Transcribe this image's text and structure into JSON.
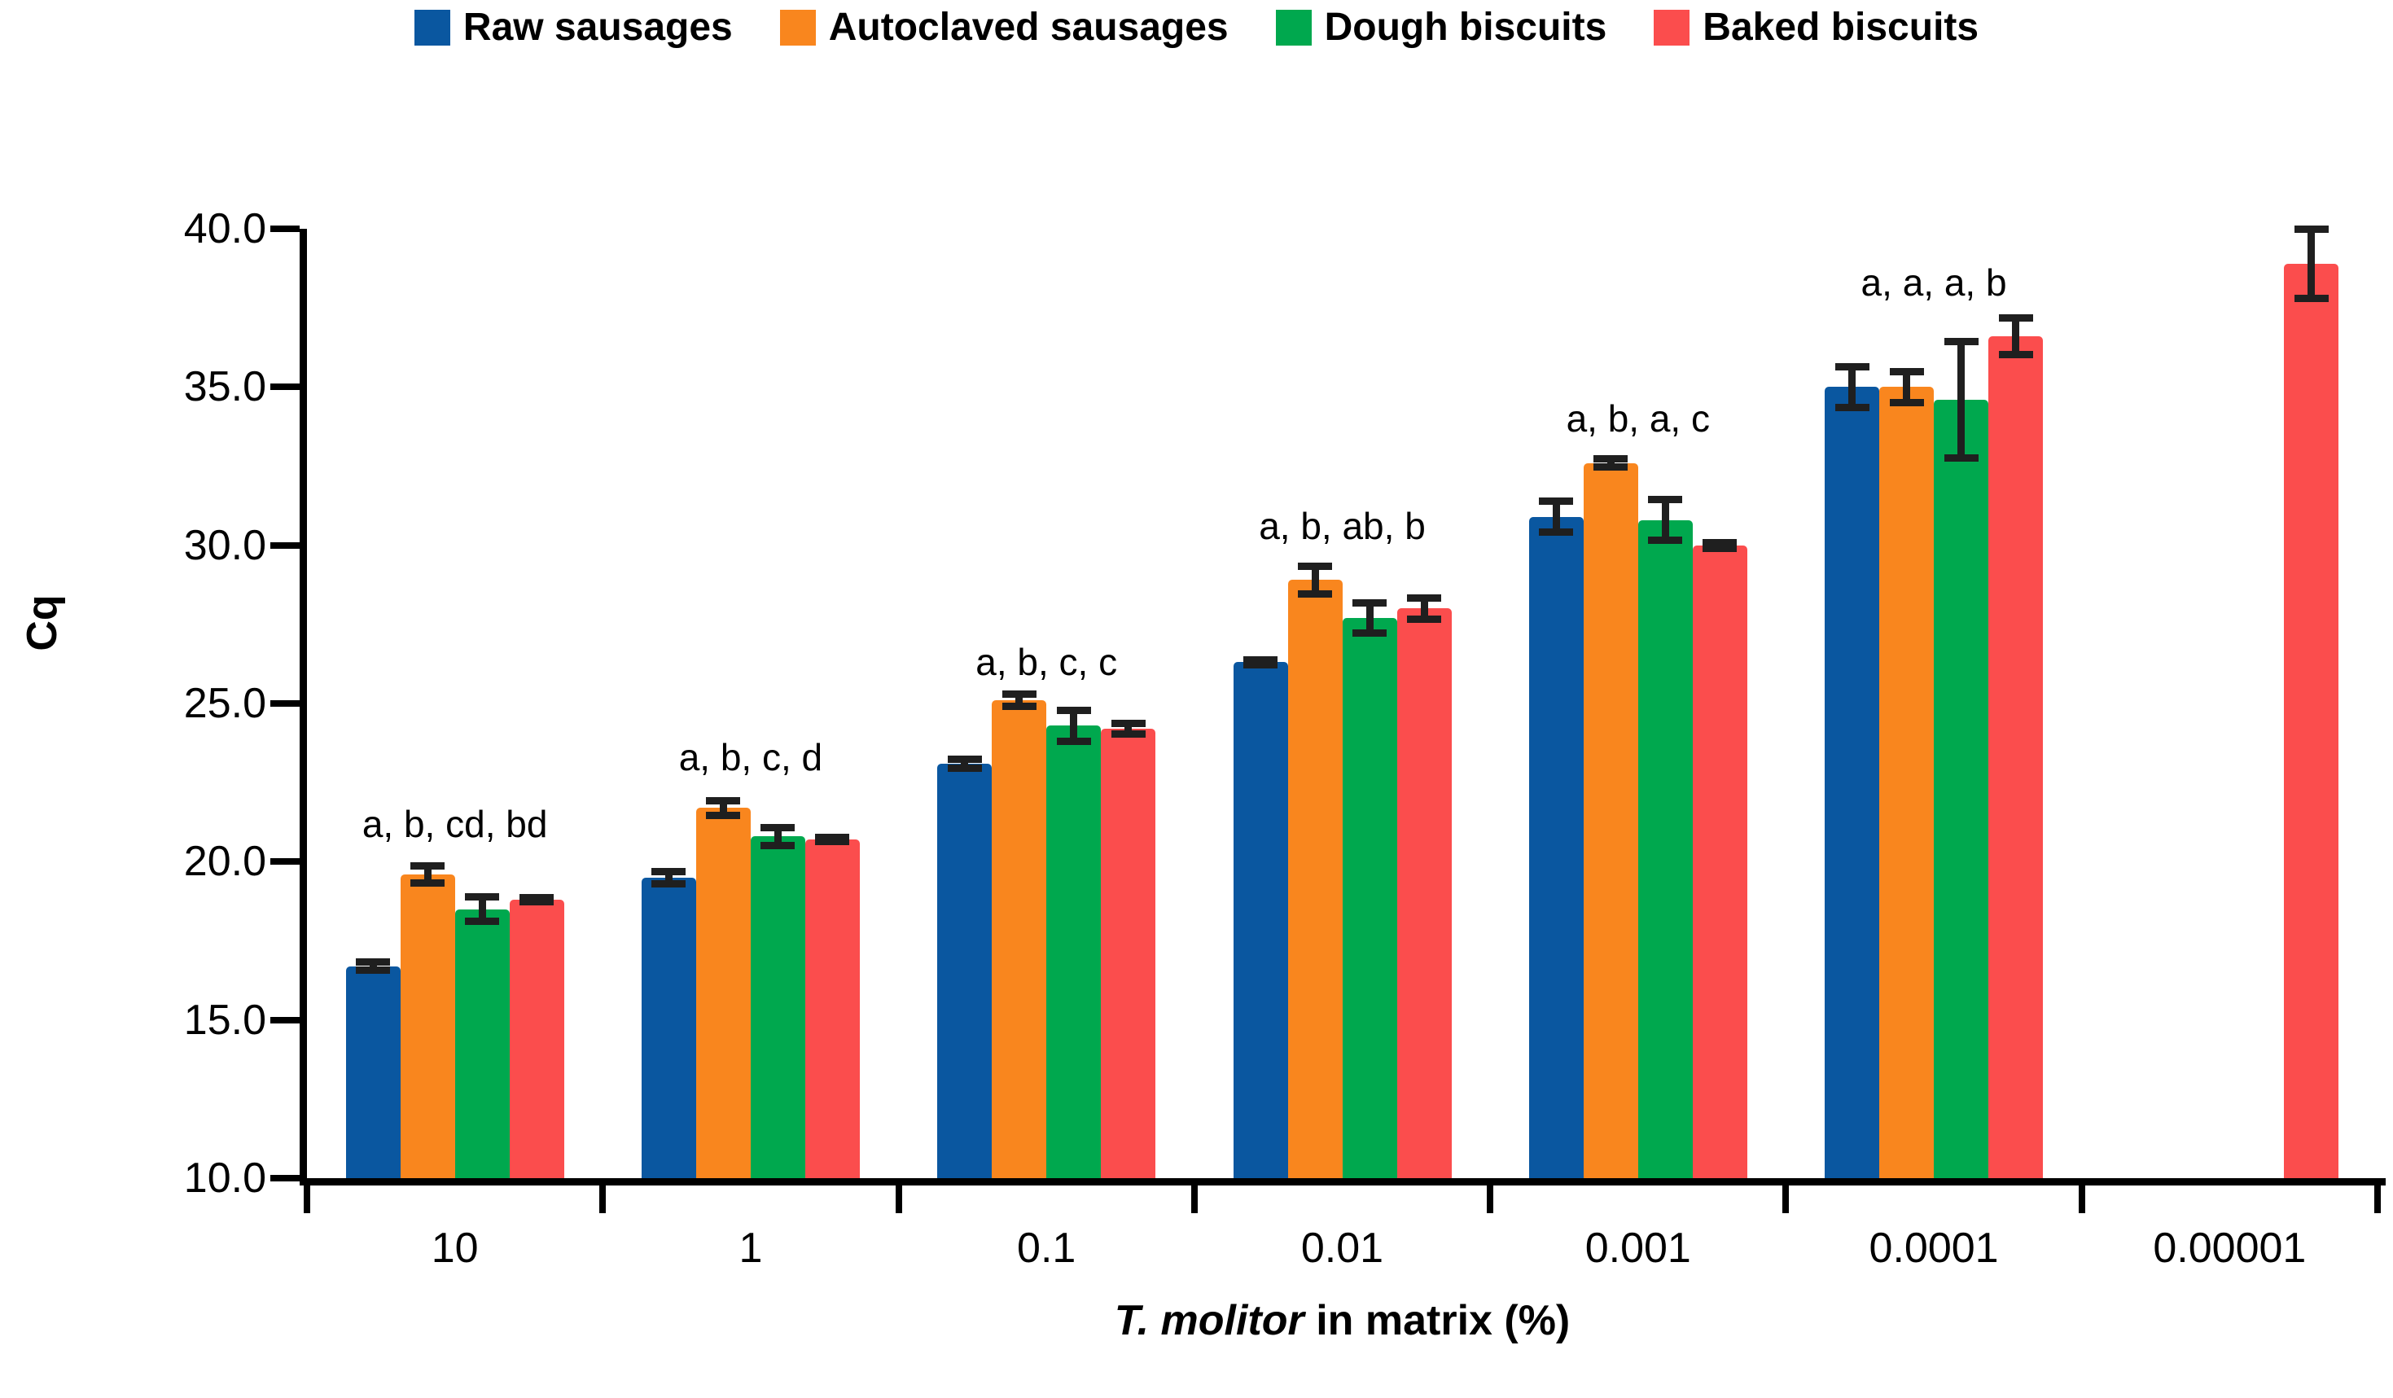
{
  "chart_data": {
    "type": "bar",
    "title": "",
    "legend_position": "top",
    "grid": false,
    "axis_color": "#000000",
    "error_bar_color": "#1f1f1f",
    "x_axis": {
      "title_italic": "T. molitor",
      "title_rest": " in matrix (%)",
      "categories": [
        "10",
        "1",
        "0.1",
        "0.01",
        "0.001",
        "0.0001",
        "0.00001"
      ]
    },
    "y_axis": {
      "title": "Cq",
      "min": 10,
      "max": 40,
      "tick_step": 5,
      "tick_labels": [
        "10.0",
        "15.0",
        "20.0",
        "25.0",
        "30.0",
        "35.0",
        "40.0"
      ]
    },
    "series": [
      {
        "name": "Raw sausages",
        "color": "#0a57a0",
        "values": [
          16.7,
          19.5,
          23.1,
          26.3,
          30.9,
          35.0,
          null
        ],
        "errors": [
          0.15,
          0.2,
          0.15,
          0.1,
          0.5,
          0.65,
          null
        ]
      },
      {
        "name": "Autoclaved sausages",
        "color": "#f9861e",
        "values": [
          19.6,
          21.7,
          25.1,
          28.9,
          32.6,
          35.0,
          null
        ],
        "errors": [
          0.28,
          0.25,
          0.2,
          0.45,
          0.15,
          0.5,
          null
        ]
      },
      {
        "name": "Dough biscuits",
        "color": "#00a84e",
        "values": [
          18.5,
          20.8,
          24.3,
          27.7,
          30.8,
          34.6,
          null
        ],
        "errors": [
          0.4,
          0.3,
          0.5,
          0.5,
          0.65,
          1.85,
          null
        ]
      },
      {
        "name": "Baked biscuits",
        "color": "#fb4d4d",
        "values": [
          18.8,
          20.7,
          24.2,
          28.0,
          30.0,
          36.6,
          38.9
        ],
        "errors": [
          0.08,
          0.08,
          0.18,
          0.35,
          0.1,
          0.6,
          1.1
        ]
      }
    ],
    "annotations": [
      {
        "text": "a, b, cd, bd",
        "group": 0,
        "cq": 21.2
      },
      {
        "text": "a, b, c, d",
        "group": 1,
        "cq": 23.3
      },
      {
        "text": "a, b, c, c",
        "group": 2,
        "cq": 26.3
      },
      {
        "text": "a, b, ab, b",
        "group": 3,
        "cq": 30.6
      },
      {
        "text": "a, b, a, c",
        "group": 4,
        "cq": 34.0
      },
      {
        "text": "a, a, a, b",
        "group": 5,
        "cq": 38.3
      }
    ]
  }
}
